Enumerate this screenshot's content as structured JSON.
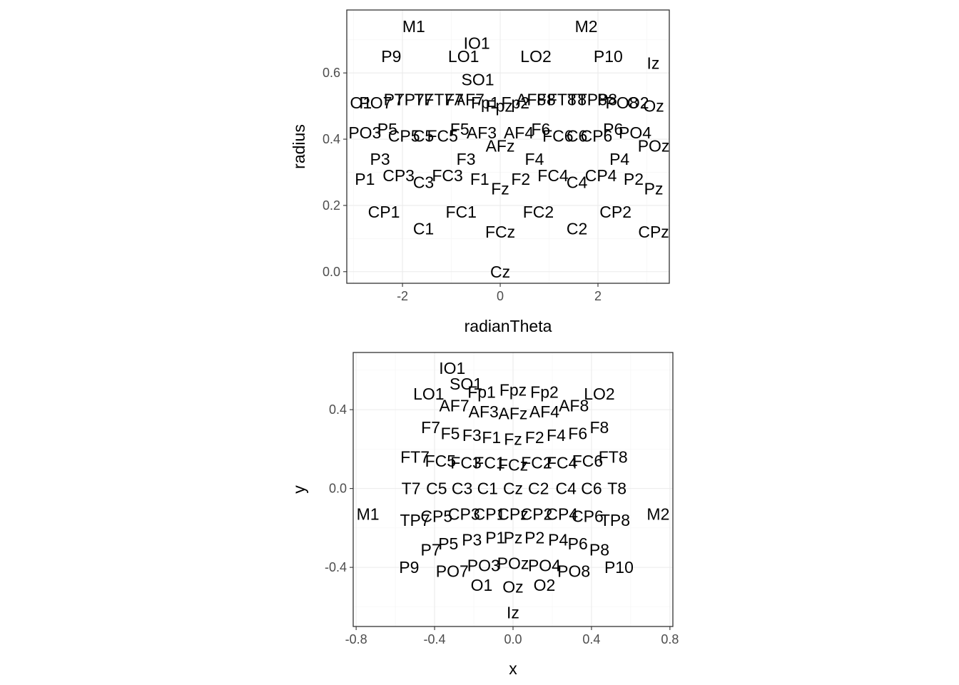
{
  "chart_data": [
    {
      "type": "scatter",
      "title": "",
      "xlabel": "radianTheta",
      "ylabel": "radius",
      "xlim": [
        -3.14,
        3.46
      ],
      "ylim": [
        -0.035,
        0.79
      ],
      "xticks": [
        -2,
        0,
        2
      ],
      "xtick_labels": [
        "-2",
        "0",
        "2"
      ],
      "yticks": [
        0.0,
        0.2,
        0.4,
        0.6
      ],
      "ytick_labels": [
        "0.0",
        "0.2",
        "0.4",
        "0.6"
      ],
      "grid": true,
      "points": [
        {
          "label": "M1",
          "x": -1.77,
          "y": 0.74
        },
        {
          "label": "M2",
          "x": 1.76,
          "y": 0.74
        },
        {
          "label": "IO1",
          "x": -0.48,
          "y": 0.69
        },
        {
          "label": "P9",
          "x": -2.23,
          "y": 0.65
        },
        {
          "label": "LO1",
          "x": -0.75,
          "y": 0.65
        },
        {
          "label": "LO2",
          "x": 0.73,
          "y": 0.65
        },
        {
          "label": "P10",
          "x": 2.21,
          "y": 0.65
        },
        {
          "label": "Iz",
          "x": 3.13,
          "y": 0.63
        },
        {
          "label": "SO1",
          "x": -0.46,
          "y": 0.58
        },
        {
          "label": "O1",
          "x": -2.85,
          "y": 0.51
        },
        {
          "label": "PO7",
          "x": -2.55,
          "y": 0.51
        },
        {
          "label": "P7",
          "x": -2.18,
          "y": 0.52
        },
        {
          "label": "TP7",
          "x": -1.86,
          "y": 0.52
        },
        {
          "label": "T7",
          "x": -1.57,
          "y": 0.52
        },
        {
          "label": "FT7",
          "x": -1.26,
          "y": 0.52
        },
        {
          "label": "F7",
          "x": -0.94,
          "y": 0.52
        },
        {
          "label": "AF7",
          "x": -0.63,
          "y": 0.52
        },
        {
          "label": "Fp1",
          "x": -0.31,
          "y": 0.51
        },
        {
          "label": "Fpz",
          "x": -0.02,
          "y": 0.5
        },
        {
          "label": "Fp2",
          "x": 0.31,
          "y": 0.51
        },
        {
          "label": "AF8",
          "x": 0.63,
          "y": 0.52
        },
        {
          "label": "F8",
          "x": 0.94,
          "y": 0.52
        },
        {
          "label": "FT8",
          "x": 1.26,
          "y": 0.52
        },
        {
          "label": "T8",
          "x": 1.57,
          "y": 0.52
        },
        {
          "label": "TP8",
          "x": 1.88,
          "y": 0.52
        },
        {
          "label": "P8",
          "x": 2.19,
          "y": 0.52
        },
        {
          "label": "PO8",
          "x": 2.49,
          "y": 0.51
        },
        {
          "label": "O2",
          "x": 2.82,
          "y": 0.51
        },
        {
          "label": "Oz",
          "x": 3.14,
          "y": 0.5
        },
        {
          "label": "P5",
          "x": -2.31,
          "y": 0.43
        },
        {
          "label": "PO3",
          "x": -2.77,
          "y": 0.42
        },
        {
          "label": "CP5",
          "x": -1.97,
          "y": 0.41
        },
        {
          "label": "C5",
          "x": -1.57,
          "y": 0.41
        },
        {
          "label": "FC5",
          "x": -1.18,
          "y": 0.41
        },
        {
          "label": "F5",
          "x": -0.83,
          "y": 0.43
        },
        {
          "label": "AF3",
          "x": -0.38,
          "y": 0.42
        },
        {
          "label": "AF4",
          "x": 0.38,
          "y": 0.42
        },
        {
          "label": "F6",
          "x": 0.83,
          "y": 0.43
        },
        {
          "label": "FC6",
          "x": 1.18,
          "y": 0.41
        },
        {
          "label": "C6",
          "x": 1.57,
          "y": 0.41
        },
        {
          "label": "CP6",
          "x": 1.97,
          "y": 0.41
        },
        {
          "label": "P6",
          "x": 2.31,
          "y": 0.43
        },
        {
          "label": "PO4",
          "x": 2.76,
          "y": 0.42
        },
        {
          "label": "POz",
          "x": 3.14,
          "y": 0.38
        },
        {
          "label": "AFz",
          "x": 0.0,
          "y": 0.38
        },
        {
          "label": "P3",
          "x": -2.46,
          "y": 0.34
        },
        {
          "label": "F3",
          "x": -0.7,
          "y": 0.34
        },
        {
          "label": "F4",
          "x": 0.7,
          "y": 0.34
        },
        {
          "label": "P4",
          "x": 2.44,
          "y": 0.34
        },
        {
          "label": "P1",
          "x": -2.77,
          "y": 0.28
        },
        {
          "label": "CP3",
          "x": -2.08,
          "y": 0.29
        },
        {
          "label": "C3",
          "x": -1.57,
          "y": 0.27
        },
        {
          "label": "FC3",
          "x": -1.08,
          "y": 0.29
        },
        {
          "label": "F1",
          "x": -0.42,
          "y": 0.28
        },
        {
          "label": "Fz",
          "x": 0.0,
          "y": 0.25
        },
        {
          "label": "F2",
          "x": 0.42,
          "y": 0.28
        },
        {
          "label": "FC4",
          "x": 1.08,
          "y": 0.29
        },
        {
          "label": "C4",
          "x": 1.57,
          "y": 0.27
        },
        {
          "label": "CP4",
          "x": 2.06,
          "y": 0.29
        },
        {
          "label": "P2",
          "x": 2.73,
          "y": 0.28
        },
        {
          "label": "Pz",
          "x": 3.14,
          "y": 0.25
        },
        {
          "label": "CP1",
          "x": -2.38,
          "y": 0.18
        },
        {
          "label": "C1",
          "x": -1.57,
          "y": 0.13
        },
        {
          "label": "FC1",
          "x": -0.8,
          "y": 0.18
        },
        {
          "label": "FCz",
          "x": 0.0,
          "y": 0.12
        },
        {
          "label": "FC2",
          "x": 0.78,
          "y": 0.18
        },
        {
          "label": "C2",
          "x": 1.57,
          "y": 0.13
        },
        {
          "label": "CP2",
          "x": 2.36,
          "y": 0.18
        },
        {
          "label": "CPz",
          "x": 3.14,
          "y": 0.12
        },
        {
          "label": "Cz",
          "x": 0.0,
          "y": 0.0
        }
      ]
    },
    {
      "type": "scatter",
      "title": "",
      "xlabel": "x",
      "ylabel": "y",
      "xlim": [
        -0.815,
        0.815
      ],
      "ylim": [
        -0.7,
        0.69
      ],
      "xticks": [
        -0.8,
        -0.4,
        0.0,
        0.4,
        0.8
      ],
      "xtick_labels": [
        "-0.8",
        "-0.4",
        "0.0",
        "0.4",
        "0.8"
      ],
      "yticks": [
        -0.4,
        0.0,
        0.4
      ],
      "ytick_labels": [
        "-0.4",
        "0.0",
        "0.4"
      ],
      "grid": true,
      "points": [
        {
          "label": "IO1",
          "x": -0.31,
          "y": 0.61
        },
        {
          "label": "SO1",
          "x": -0.24,
          "y": 0.53
        },
        {
          "label": "LO1",
          "x": -0.43,
          "y": 0.48
        },
        {
          "label": "Fp1",
          "x": -0.16,
          "y": 0.49
        },
        {
          "label": "Fpz",
          "x": 0.0,
          "y": 0.5
        },
        {
          "label": "Fp2",
          "x": 0.16,
          "y": 0.49
        },
        {
          "label": "LO2",
          "x": 0.44,
          "y": 0.48
        },
        {
          "label": "AF7",
          "x": -0.3,
          "y": 0.42
        },
        {
          "label": "AF3",
          "x": -0.15,
          "y": 0.39
        },
        {
          "label": "AFz",
          "x": 0.0,
          "y": 0.38
        },
        {
          "label": "AF4",
          "x": 0.16,
          "y": 0.39
        },
        {
          "label": "AF8",
          "x": 0.31,
          "y": 0.42
        },
        {
          "label": "F7",
          "x": -0.42,
          "y": 0.31
        },
        {
          "label": "F5",
          "x": -0.32,
          "y": 0.28
        },
        {
          "label": "F3",
          "x": -0.21,
          "y": 0.27
        },
        {
          "label": "F1",
          "x": -0.11,
          "y": 0.26
        },
        {
          "label": "Fz",
          "x": 0.0,
          "y": 0.25
        },
        {
          "label": "F2",
          "x": 0.11,
          "y": 0.26
        },
        {
          "label": "F4",
          "x": 0.22,
          "y": 0.27
        },
        {
          "label": "F6",
          "x": 0.33,
          "y": 0.28
        },
        {
          "label": "F8",
          "x": 0.44,
          "y": 0.31
        },
        {
          "label": "FT7",
          "x": -0.5,
          "y": 0.16
        },
        {
          "label": "FC5",
          "x": -0.37,
          "y": 0.14
        },
        {
          "label": "FC3",
          "x": -0.24,
          "y": 0.13
        },
        {
          "label": "FC1",
          "x": -0.12,
          "y": 0.13
        },
        {
          "label": "FCz",
          "x": 0.0,
          "y": 0.12
        },
        {
          "label": "FC2",
          "x": 0.12,
          "y": 0.13
        },
        {
          "label": "FC4",
          "x": 0.25,
          "y": 0.13
        },
        {
          "label": "FC6",
          "x": 0.38,
          "y": 0.14
        },
        {
          "label": "FT8",
          "x": 0.51,
          "y": 0.16
        },
        {
          "label": "T7",
          "x": -0.52,
          "y": 0.0
        },
        {
          "label": "C5",
          "x": -0.39,
          "y": 0.0
        },
        {
          "label": "C3",
          "x": -0.26,
          "y": 0.0
        },
        {
          "label": "C1",
          "x": -0.13,
          "y": 0.0
        },
        {
          "label": "Cz",
          "x": 0.0,
          "y": 0.0
        },
        {
          "label": "C2",
          "x": 0.13,
          "y": 0.0
        },
        {
          "label": "C4",
          "x": 0.27,
          "y": 0.0
        },
        {
          "label": "C6",
          "x": 0.4,
          "y": 0.0
        },
        {
          "label": "T8",
          "x": 0.53,
          "y": 0.0
        },
        {
          "label": "M1",
          "x": -0.74,
          "y": -0.13
        },
        {
          "label": "TP7",
          "x": -0.5,
          "y": -0.16
        },
        {
          "label": "CP5",
          "x": -0.39,
          "y": -0.14
        },
        {
          "label": "CP3",
          "x": -0.25,
          "y": -0.13
        },
        {
          "label": "CP1",
          "x": -0.12,
          "y": -0.13
        },
        {
          "label": "CPz",
          "x": 0.0,
          "y": -0.13
        },
        {
          "label": "CP2",
          "x": 0.12,
          "y": -0.13
        },
        {
          "label": "CP4",
          "x": 0.25,
          "y": -0.13
        },
        {
          "label": "CP6",
          "x": 0.38,
          "y": -0.14
        },
        {
          "label": "TP8",
          "x": 0.52,
          "y": -0.16
        },
        {
          "label": "M2",
          "x": 0.74,
          "y": -0.13
        },
        {
          "label": "P7",
          "x": -0.42,
          "y": -0.31
        },
        {
          "label": "P5",
          "x": -0.33,
          "y": -0.28
        },
        {
          "label": "P3",
          "x": -0.21,
          "y": -0.26
        },
        {
          "label": "P1",
          "x": -0.09,
          "y": -0.25
        },
        {
          "label": "Pz",
          "x": 0.0,
          "y": -0.25
        },
        {
          "label": "P2",
          "x": 0.11,
          "y": -0.25
        },
        {
          "label": "P4",
          "x": 0.23,
          "y": -0.26
        },
        {
          "label": "P6",
          "x": 0.33,
          "y": -0.28
        },
        {
          "label": "P8",
          "x": 0.44,
          "y": -0.31
        },
        {
          "label": "P9",
          "x": -0.53,
          "y": -0.4
        },
        {
          "label": "PO7",
          "x": -0.31,
          "y": -0.42
        },
        {
          "label": "PO3",
          "x": -0.15,
          "y": -0.39
        },
        {
          "label": "POz",
          "x": 0.0,
          "y": -0.38
        },
        {
          "label": "PO4",
          "x": 0.16,
          "y": -0.39
        },
        {
          "label": "PO8",
          "x": 0.31,
          "y": -0.42
        },
        {
          "label": "P10",
          "x": 0.54,
          "y": -0.4
        },
        {
          "label": "O1",
          "x": -0.16,
          "y": -0.49
        },
        {
          "label": "Oz",
          "x": 0.0,
          "y": -0.5
        },
        {
          "label": "O2",
          "x": 0.16,
          "y": -0.49
        },
        {
          "label": "Iz",
          "x": 0.0,
          "y": -0.63
        }
      ]
    }
  ]
}
